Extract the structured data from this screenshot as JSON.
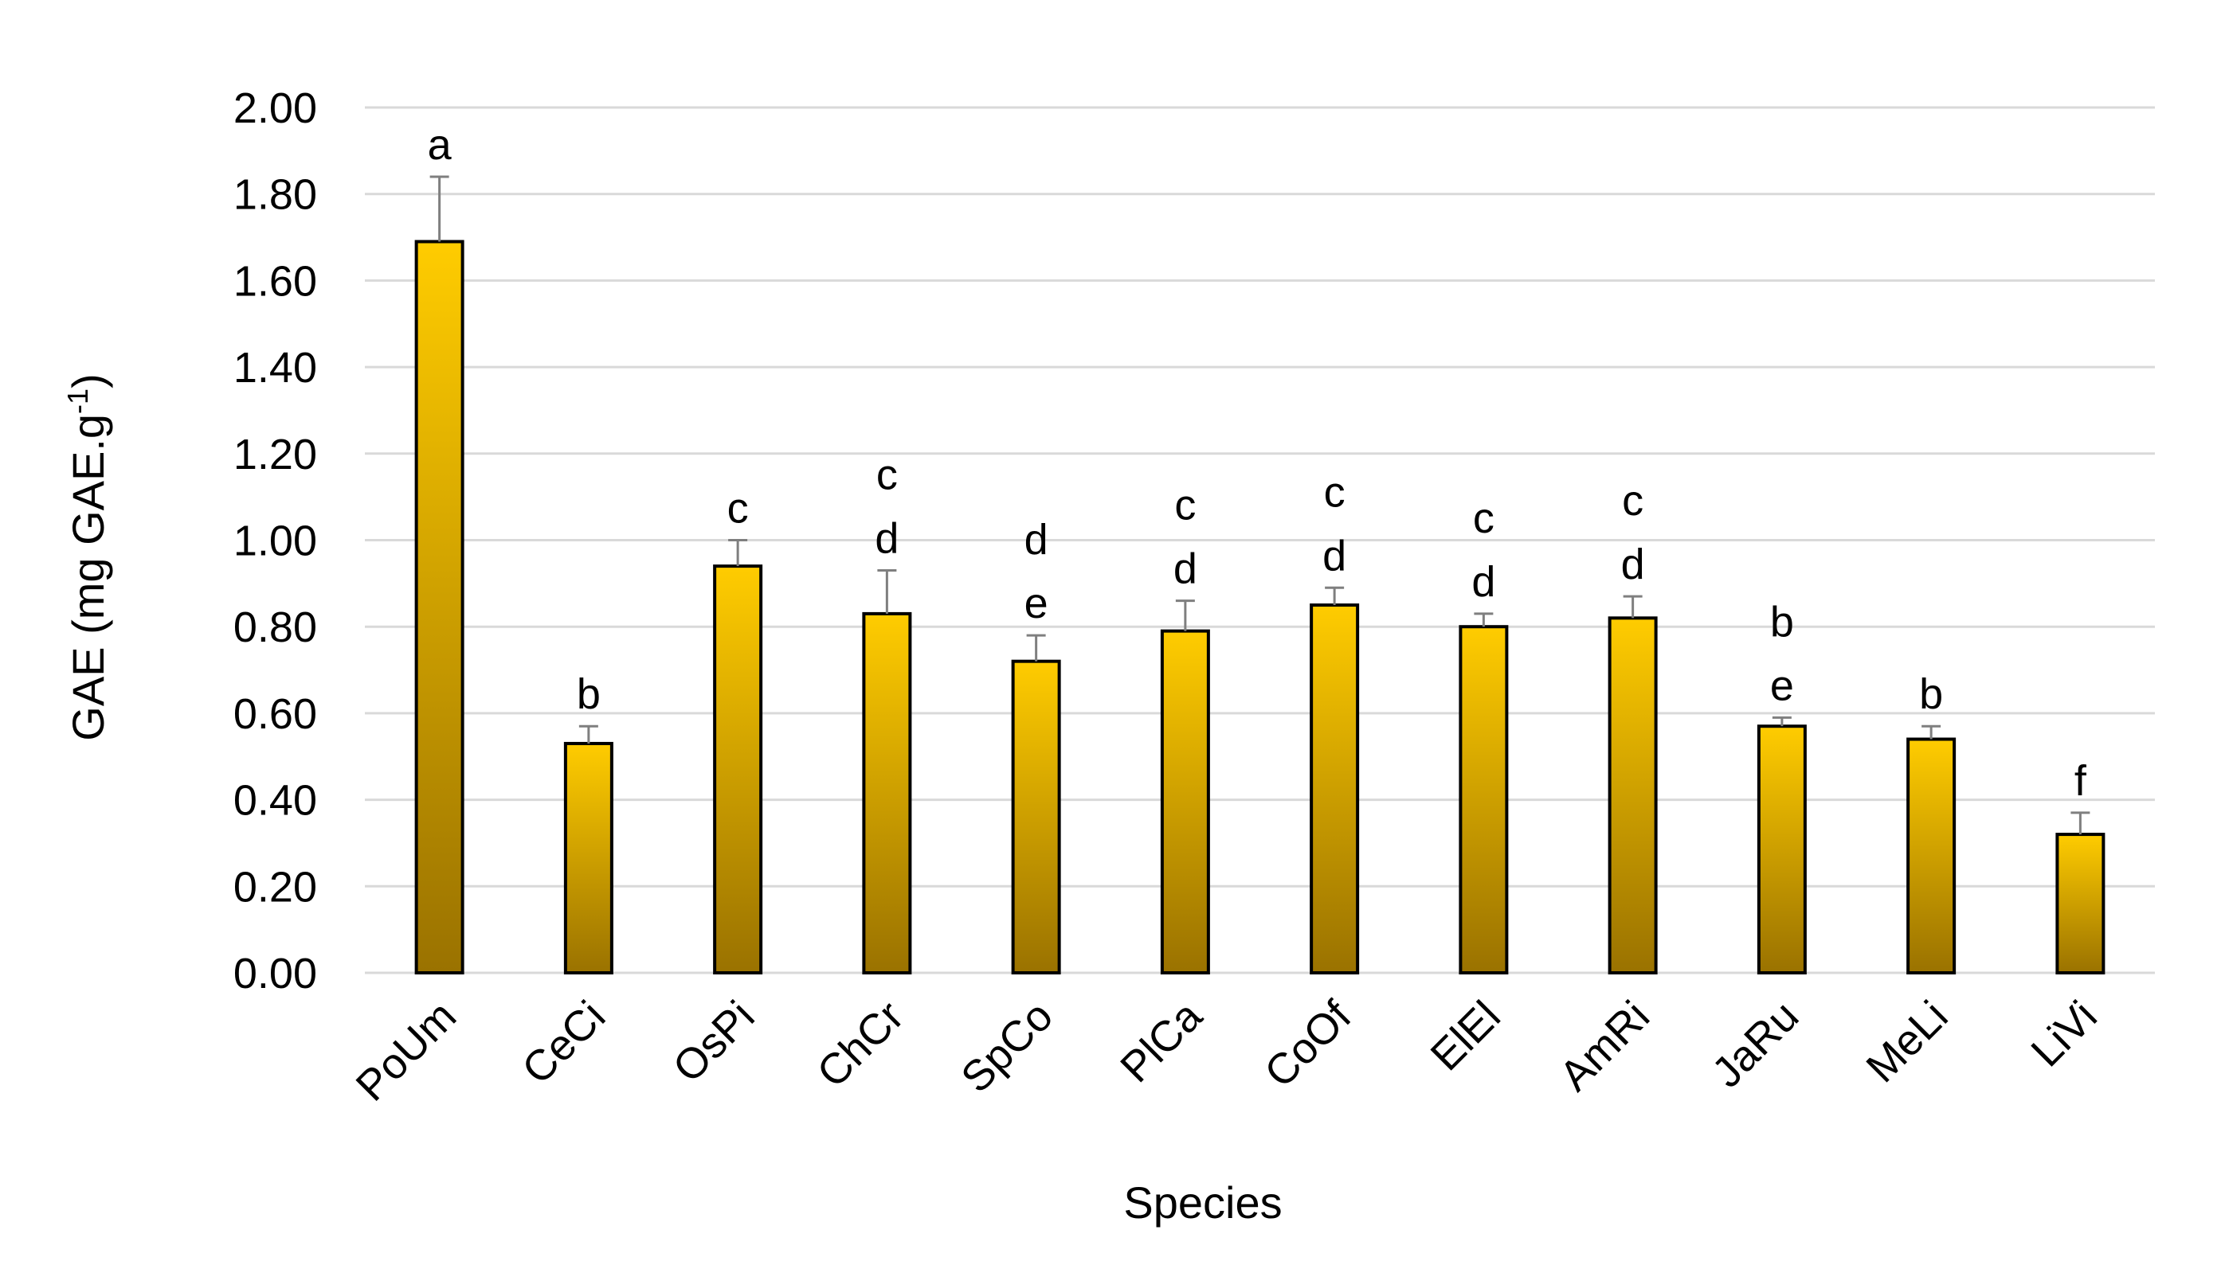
{
  "chart_data": {
    "type": "bar",
    "title": "",
    "xlabel": "Species",
    "ylabel": "GAE (mg GAE.g",
    "ylabel_sup": "-1",
    "ylabel_end": ")",
    "ylim": [
      0,
      2.0
    ],
    "yticks": [
      "0.00",
      "0.20",
      "0.40",
      "0.60",
      "0.80",
      "1.00",
      "1.20",
      "1.40",
      "1.60",
      "1.80",
      "2.00"
    ],
    "grid": true,
    "legend": "none",
    "categories": [
      "PoUm",
      "CeCi",
      "OsPi",
      "ChCr",
      "SpCo",
      "PlCa",
      "CoOf",
      "ElEl",
      "AmRi",
      "JaRu",
      "MeLi",
      "LiVi"
    ],
    "values": [
      1.69,
      0.53,
      0.94,
      0.83,
      0.72,
      0.79,
      0.85,
      0.8,
      0.82,
      0.57,
      0.54,
      0.32
    ],
    "errors": [
      0.15,
      0.04,
      0.06,
      0.1,
      0.06,
      0.07,
      0.04,
      0.03,
      0.05,
      0.02,
      0.03,
      0.05
    ],
    "significance": [
      [
        "a"
      ],
      [
        "b"
      ],
      [
        "c"
      ],
      [
        "c",
        "d"
      ],
      [
        "d",
        "e"
      ],
      [
        "c",
        "d"
      ],
      [
        "c",
        "d"
      ],
      [
        "c",
        "d"
      ],
      [
        "c",
        "d"
      ],
      [
        "b",
        "e"
      ],
      [
        "b"
      ],
      [
        "f"
      ]
    ],
    "colors": {
      "bar_top": "#FFCC00",
      "bar_bottom": "#9A7200",
      "error": "#7f7f7f",
      "grid": "#d9d9d9"
    }
  }
}
